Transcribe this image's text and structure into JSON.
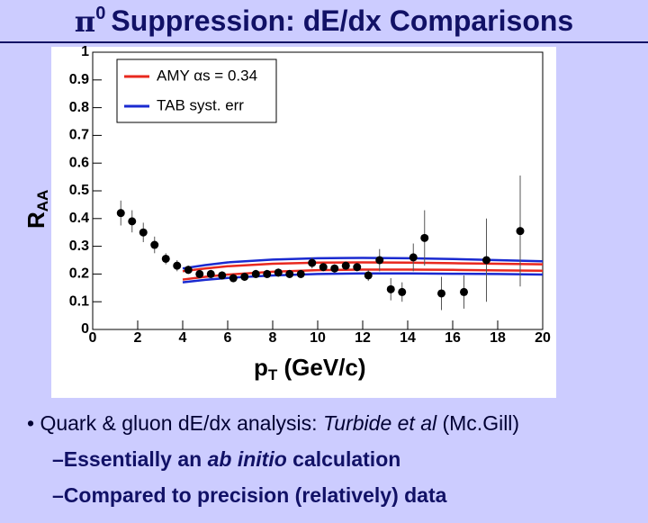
{
  "slide": {
    "title_symbol": "π",
    "title_sup": "0",
    "title_text": "Suppression: dE/dx Comparisons",
    "bullet1": [
      "Quark & gluon dE/dx analysis: ",
      "Turbide et al",
      " (Mc.Gill)"
    ],
    "bullet2": [
      "–Essentially an ",
      "ab initio",
      " calculation"
    ],
    "bullet3": [
      "–Compared to precision (relatively) data"
    ]
  },
  "chart_data": {
    "type": "scatter",
    "ylabel": "R",
    "ylabel_sub": "AA",
    "xlabel": "p",
    "xlabel_sub": "T",
    "xlabel_rest": " (GeV/c)",
    "xlim": [
      0,
      20
    ],
    "ylim": [
      0,
      1
    ],
    "xticks": [
      0,
      2,
      4,
      6,
      8,
      10,
      12,
      14,
      16,
      18,
      20
    ],
    "yticks": [
      0,
      0.1,
      0.2,
      0.3,
      0.4,
      0.5,
      0.6,
      0.7,
      0.8,
      0.9,
      1
    ],
    "color": "#000000",
    "x": [
      1.25,
      1.75,
      2.25,
      2.75,
      3.25,
      3.75,
      4.25,
      4.75,
      5.25,
      5.75,
      6.25,
      6.75,
      7.25,
      7.75,
      8.25,
      8.75,
      9.25,
      9.75,
      10.25,
      10.75,
      11.25,
      11.75,
      12.25,
      12.75,
      13.25,
      13.75,
      14.25,
      14.75,
      15.5,
      16.5,
      17.5,
      19
    ],
    "values": [
      0.42,
      0.39,
      0.35,
      0.305,
      0.255,
      0.23,
      0.215,
      0.2,
      0.2,
      0.195,
      0.185,
      0.19,
      0.2,
      0.2,
      0.205,
      0.2,
      0.2,
      0.24,
      0.225,
      0.22,
      0.23,
      0.225,
      0.195,
      0.25,
      0.145,
      0.135,
      0.26,
      0.33,
      0.13,
      0.135,
      0.25,
      0.355
    ],
    "errors": [
      0.045,
      0.04,
      0.035,
      0.03,
      0.02,
      0.02,
      0.015,
      0.015,
      0.015,
      0.015,
      0.015,
      0.015,
      0.015,
      0.015,
      0.015,
      0.015,
      0.015,
      0.02,
      0.015,
      0.015,
      0.015,
      0.015,
      0.02,
      0.04,
      0.04,
      0.035,
      0.05,
      0.1,
      0.06,
      0.06,
      0.15,
      0.2
    ],
    "series": [
      {
        "name": "AMY αs = 0.34",
        "color": "#e8281e",
        "x": [
          4,
          5,
          6,
          8,
          10,
          12,
          14,
          16,
          18,
          20
        ],
        "upper": [
          0.21,
          0.22,
          0.228,
          0.237,
          0.241,
          0.242,
          0.241,
          0.239,
          0.237,
          0.235
        ],
        "lower": [
          0.18,
          0.19,
          0.198,
          0.208,
          0.214,
          0.216,
          0.216,
          0.215,
          0.213,
          0.212
        ]
      },
      {
        "name": "TAB syst. err",
        "color": "#1a2ad0",
        "x": [
          4,
          5,
          6,
          8,
          10,
          12,
          14,
          16,
          18,
          20
        ],
        "upper": [
          0.22,
          0.232,
          0.242,
          0.252,
          0.257,
          0.258,
          0.257,
          0.254,
          0.25,
          0.246
        ],
        "lower": [
          0.17,
          0.179,
          0.186,
          0.195,
          0.2,
          0.202,
          0.202,
          0.201,
          0.2,
          0.198
        ]
      }
    ]
  }
}
